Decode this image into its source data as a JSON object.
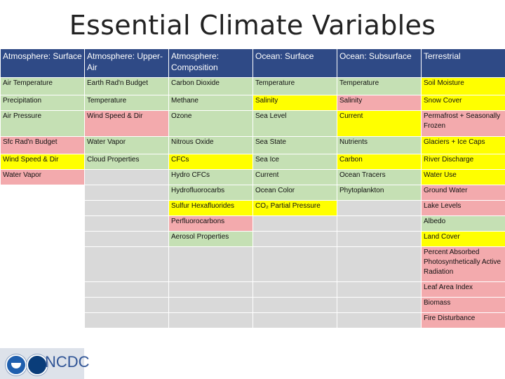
{
  "slide": {
    "title": "Essential Climate Variables"
  },
  "footer": {
    "org": "NCDC"
  },
  "table": {
    "headers": [
      "Atmosphere: Surface",
      "Atmosphere: Upper-Air",
      "Atmosphere: Composition",
      "Ocean: Surface",
      "Ocean: Subsurface",
      "Terrestrial"
    ],
    "rows": [
      {
        "cells": [
          {
            "text": "Air Temperature",
            "color": "green"
          },
          {
            "text": "Earth Rad'n Budget",
            "color": "green"
          },
          {
            "text": "Carbon Dioxide",
            "color": "green"
          },
          {
            "text": "Temperature",
            "color": "green"
          },
          {
            "text": "Temperature",
            "color": "green"
          },
          {
            "text": "Soil Moisture",
            "color": "yellow"
          }
        ]
      },
      {
        "cells": [
          {
            "text": "Precipitation",
            "color": "green"
          },
          {
            "text": "Temperature",
            "color": "green"
          },
          {
            "text": "Methane",
            "color": "green"
          },
          {
            "text": "Salinity",
            "color": "yellow"
          },
          {
            "text": "Salinity",
            "color": "red"
          },
          {
            "text": "Snow Cover",
            "color": "yellow"
          }
        ]
      },
      {
        "cells": [
          {
            "text": "Air Pressure",
            "color": "green"
          },
          {
            "text": "Wind Speed & Dir",
            "color": "red"
          },
          {
            "text": "Ozone",
            "color": "green"
          },
          {
            "text": "Sea Level",
            "color": "green"
          },
          {
            "text": "Current",
            "color": "yellow"
          },
          {
            "text": "Permafrost + Seasonally Frozen",
            "color": "red"
          }
        ]
      },
      {
        "cells": [
          {
            "text": "Sfc Rad'n Budget",
            "color": "red"
          },
          {
            "text": "Water Vapor",
            "color": "green"
          },
          {
            "text": "Nitrous Oxide",
            "color": "green"
          },
          {
            "text": "Sea State",
            "color": "green"
          },
          {
            "text": "Nutrients",
            "color": "green"
          },
          {
            "text": "Glaciers + Ice Caps",
            "color": "yellow"
          }
        ]
      },
      {
        "cells": [
          {
            "text": "Wind Speed & Dir",
            "color": "yellow"
          },
          {
            "text": "Cloud Properties",
            "color": "green"
          },
          {
            "text": "CFCs",
            "color": "yellow"
          },
          {
            "text": "Sea Ice",
            "color": "green"
          },
          {
            "text": "Carbon",
            "color": "yellow"
          },
          {
            "text": "River Discharge",
            "color": "yellow"
          }
        ]
      },
      {
        "cells": [
          {
            "text": "Water Vapor",
            "color": "red"
          },
          {
            "text": "",
            "color": "gray"
          },
          {
            "text": "Hydro CFCs",
            "color": "green"
          },
          {
            "text": "Current",
            "color": "green"
          },
          {
            "text": "Ocean Tracers",
            "color": "green"
          },
          {
            "text": "Water Use",
            "color": "yellow"
          }
        ]
      },
      {
        "cells": [
          {
            "text": "",
            "color": "empty"
          },
          {
            "text": "",
            "color": "gray"
          },
          {
            "text": "Hydrofluorocarbs",
            "color": "green"
          },
          {
            "text": "Ocean Color",
            "color": "green"
          },
          {
            "text": "Phytoplankton",
            "color": "green"
          },
          {
            "text": "Ground Water",
            "color": "red"
          }
        ]
      },
      {
        "cells": [
          {
            "text": "",
            "color": "empty"
          },
          {
            "text": "",
            "color": "gray"
          },
          {
            "text": "Sulfur Hexafluorides",
            "color": "yellow"
          },
          {
            "text": "CO₂ Partial Pressure",
            "color": "yellow"
          },
          {
            "text": "",
            "color": "gray"
          },
          {
            "text": "Lake Levels",
            "color": "red"
          }
        ]
      },
      {
        "cells": [
          {
            "text": "",
            "color": "empty"
          },
          {
            "text": "",
            "color": "gray"
          },
          {
            "text": "Perfluorocarbons",
            "color": "red"
          },
          {
            "text": "",
            "color": "gray"
          },
          {
            "text": "",
            "color": "gray"
          },
          {
            "text": "Albedo",
            "color": "green"
          }
        ]
      },
      {
        "cells": [
          {
            "text": "",
            "color": "empty"
          },
          {
            "text": "",
            "color": "gray"
          },
          {
            "text": "Aerosol Properties",
            "color": "green"
          },
          {
            "text": "",
            "color": "gray"
          },
          {
            "text": "",
            "color": "gray"
          },
          {
            "text": "Land Cover",
            "color": "yellow"
          }
        ]
      },
      {
        "cells": [
          {
            "text": "",
            "color": "empty"
          },
          {
            "text": "",
            "color": "gray"
          },
          {
            "text": "",
            "color": "gray"
          },
          {
            "text": "",
            "color": "gray"
          },
          {
            "text": "",
            "color": "gray"
          },
          {
            "text": "Percent Absorbed Photosynthetically Active Radiation",
            "color": "red"
          }
        ]
      },
      {
        "cells": [
          {
            "text": "",
            "color": "empty"
          },
          {
            "text": "",
            "color": "gray"
          },
          {
            "text": "",
            "color": "gray"
          },
          {
            "text": "",
            "color": "gray"
          },
          {
            "text": "",
            "color": "gray"
          },
          {
            "text": "Leaf Area Index",
            "color": "red"
          }
        ]
      },
      {
        "cells": [
          {
            "text": "",
            "color": "empty"
          },
          {
            "text": "",
            "color": "gray"
          },
          {
            "text": "",
            "color": "gray"
          },
          {
            "text": "",
            "color": "gray"
          },
          {
            "text": "",
            "color": "gray"
          },
          {
            "text": "Biomass",
            "color": "red"
          }
        ]
      },
      {
        "cells": [
          {
            "text": "",
            "color": "empty"
          },
          {
            "text": "",
            "color": "gray"
          },
          {
            "text": "",
            "color": "gray"
          },
          {
            "text": "",
            "color": "gray"
          },
          {
            "text": "",
            "color": "gray"
          },
          {
            "text": "Fire Disturbance",
            "color": "red"
          }
        ]
      }
    ]
  },
  "colors": {
    "header": "#2f4a86",
    "red": "#f3aaad",
    "green": "#c5e0b4",
    "yellow": "#ffff00",
    "gray": "#d9d9d9"
  }
}
